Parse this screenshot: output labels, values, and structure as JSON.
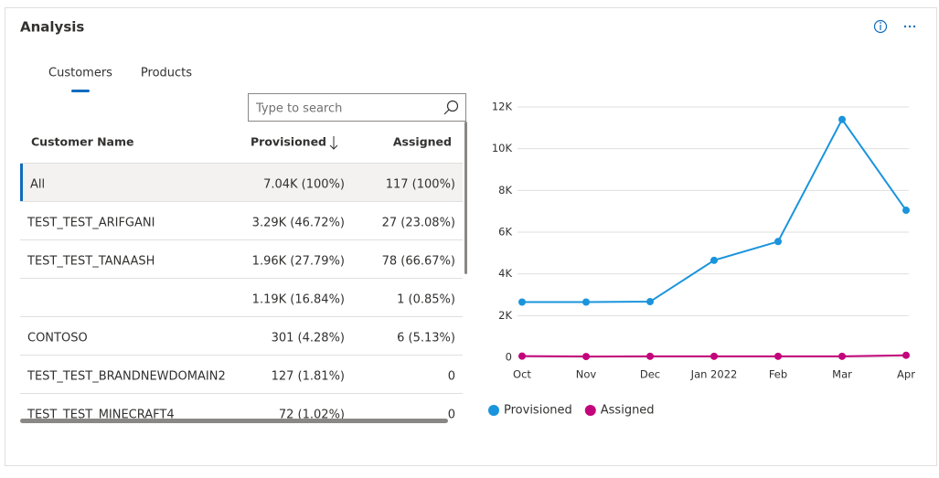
{
  "header": {
    "title": "Analysis"
  },
  "tabs": [
    "Customers",
    "Products"
  ],
  "search": {
    "placeholder": "Type to search"
  },
  "table": {
    "columns": [
      "Customer Name",
      "Provisioned",
      "Assigned"
    ],
    "rows": [
      [
        "All",
        "7.04K (100%)",
        "117 (100%)"
      ],
      [
        "TEST_TEST_ARIFGANI",
        "3.29K (46.72%)",
        "27 (23.08%)"
      ],
      [
        "TEST_TEST_TANAASH",
        "1.96K (27.79%)",
        "78 (66.67%)"
      ],
      [
        null,
        "1.19K (16.84%)",
        "1 (0.85%)"
      ],
      [
        "CONTOSO",
        "301 (4.28%)",
        "6 (5.13%)"
      ],
      [
        "TEST_TEST_BRANDNEWDOMAIN2",
        "127 (1.81%)",
        "0"
      ],
      [
        "TEST_TEST_MINECRAFT4",
        "72 (1.02%)",
        "0"
      ]
    ]
  },
  "chart_data": {
    "type": "line",
    "categories": [
      "Oct",
      "Nov",
      "Dec",
      "Jan 2022",
      "Feb",
      "Mar",
      "Apr"
    ],
    "series": [
      {
        "name": "Provisioned",
        "color": "#1a94dc",
        "values": [
          2650,
          2650,
          2670,
          4650,
          5550,
          11400,
          7050
        ]
      },
      {
        "name": "Assigned",
        "color": "#c3057b",
        "values": [
          60,
          40,
          50,
          50,
          50,
          50,
          100
        ]
      }
    ],
    "ylim": [
      0,
      12000
    ],
    "yticks": [
      0,
      {
        "value": 2000,
        "label": "2K"
      },
      {
        "value": 4000,
        "label": "4K"
      },
      {
        "value": 6000,
        "label": "6K"
      },
      {
        "value": 8000,
        "label": "8K"
      },
      {
        "value": 10000,
        "label": "10K"
      },
      {
        "value": 12000,
        "label": "12K"
      }
    ],
    "grid": true
  }
}
